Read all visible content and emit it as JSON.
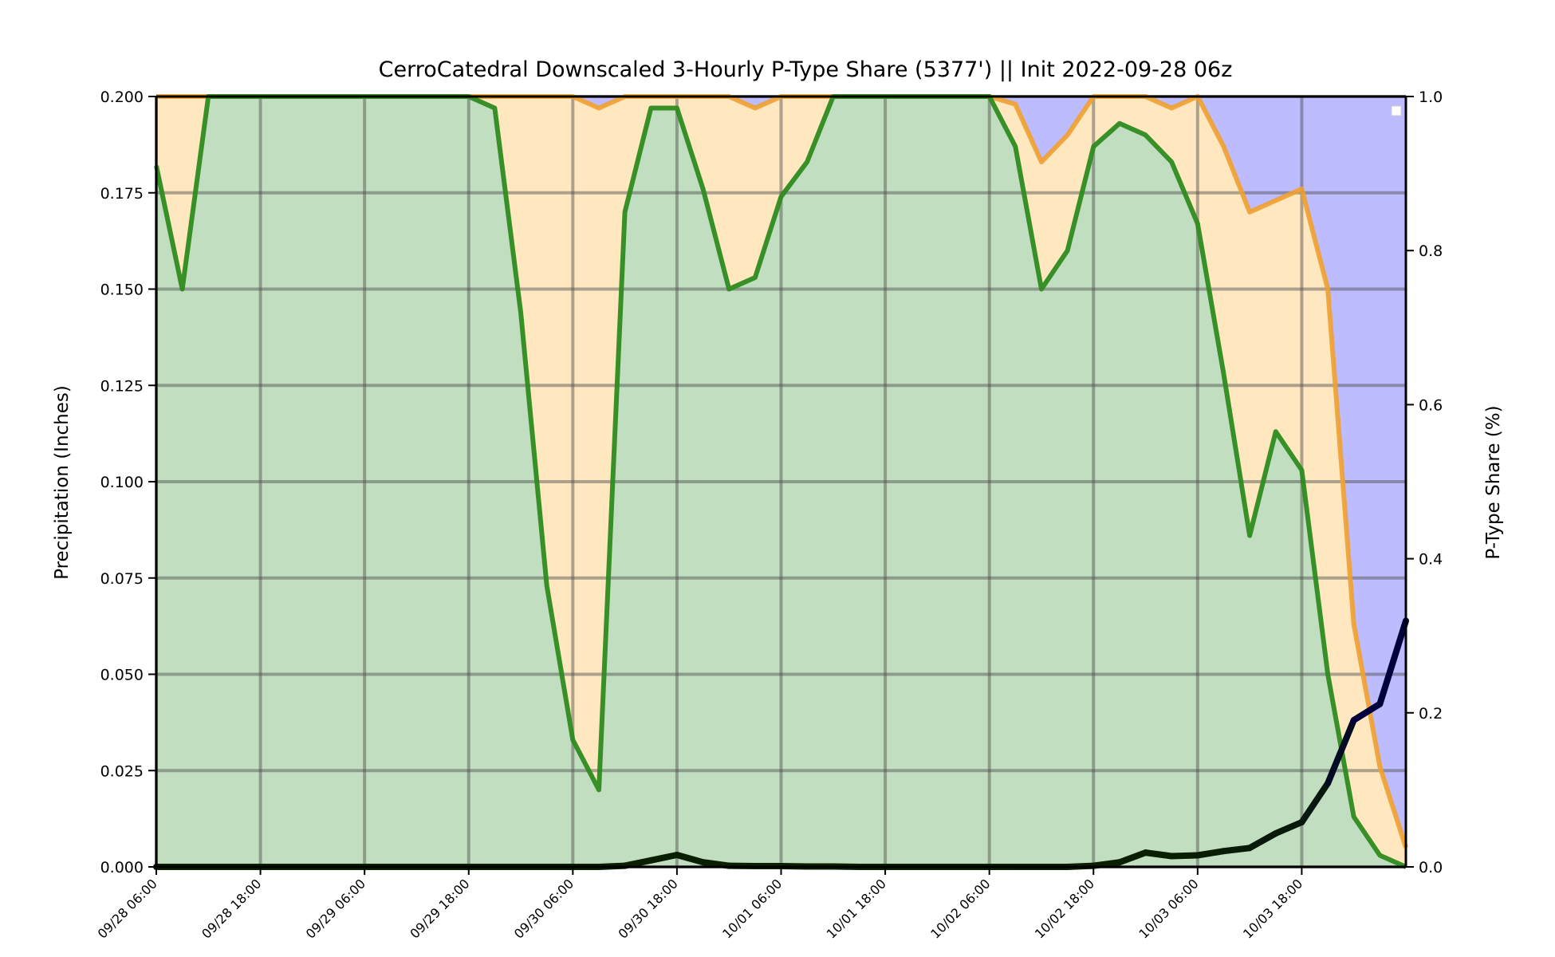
{
  "chart_data": {
    "type": "area",
    "title": "CerroCatedral Downscaled 3-Hourly P-Type Share (5377') || Init 2022-09-28 06z",
    "ylabel": "Precipitation (Inches)",
    "y2label": "P-Type Share (%)",
    "ylim": [
      0,
      0.2
    ],
    "y2lim": [
      0,
      1.0
    ],
    "yticks": [
      "0.000",
      "0.025",
      "0.050",
      "0.075",
      "0.100",
      "0.125",
      "0.150",
      "0.175",
      "0.200"
    ],
    "y2ticks": [
      "0.0",
      "0.2",
      "0.4",
      "0.6",
      "0.8",
      "1.0"
    ],
    "xticks": [
      "09/28 06:00",
      "09/28 18:00",
      "09/29 06:00",
      "09/29 18:00",
      "09/30 06:00",
      "09/30 18:00",
      "10/01 06:00",
      "10/01 18:00",
      "10/02 06:00",
      "10/02 18:00",
      "10/03 06:00",
      "10/03 18:00"
    ],
    "time_step_hours": 3,
    "grid": true,
    "legend": "top-right",
    "colors": {
      "rain_fill": "#c1dfc0",
      "mix_fill": "#ffe7c0",
      "snow_fill": "#bcbcff",
      "rain_line": "#2e8b1f",
      "mix_line": "#f0a030",
      "precip_low": "#0a1f00",
      "precip_high": "#00003c",
      "grid": "#4c4c4c"
    },
    "series": [
      {
        "key": "rain_share",
        "values": [
          0.91,
          0.75,
          1.0,
          1.0,
          1.0,
          1.0,
          1.0,
          1.0,
          1.0,
          1.0,
          1.0,
          1.0,
          1.0,
          0.985,
          0.72,
          0.365,
          0.165,
          0.1,
          0.85,
          0.985,
          0.985,
          0.88,
          0.75,
          0.765,
          0.87,
          0.915,
          1.0,
          1.0,
          1.0,
          1.0,
          1.0,
          1.0,
          1.0,
          0.935,
          0.75,
          0.8,
          0.935,
          0.965,
          0.95,
          0.915,
          0.835,
          0.64,
          0.43,
          0.565,
          0.515,
          0.25,
          0.065,
          0.015,
          0.0
        ]
      },
      {
        "key": "rain_mix_share",
        "values": [
          1.0,
          1.0,
          1.0,
          1.0,
          1.0,
          1.0,
          1.0,
          1.0,
          1.0,
          1.0,
          1.0,
          1.0,
          1.0,
          1.0,
          1.0,
          1.0,
          1.0,
          0.985,
          1.0,
          1.0,
          1.0,
          1.0,
          1.0,
          0.985,
          1.0,
          1.0,
          1.0,
          1.0,
          1.0,
          1.0,
          1.0,
          1.0,
          1.0,
          0.99,
          0.915,
          0.95,
          1.0,
          1.0,
          1.0,
          0.985,
          1.0,
          0.935,
          0.85,
          0.865,
          0.88,
          0.75,
          0.315,
          0.13,
          0.025
        ]
      },
      {
        "key": "precip_in",
        "values": [
          0.0,
          0.0,
          0.0,
          0.0,
          0.0,
          0.0,
          0.0,
          0.0,
          0.0,
          0.0,
          0.0,
          0.0,
          0.0,
          0.0,
          0.0,
          0.0,
          0.0,
          0.0,
          0.0003,
          0.0017,
          0.0031,
          0.0012,
          0.0003,
          0.0002,
          0.0002,
          0.0001,
          0.0001,
          0.0,
          0.0,
          0.0,
          0.0,
          0.0,
          0.0,
          0.0,
          0.0,
          0.0,
          0.0003,
          0.0012,
          0.0037,
          0.0028,
          0.003,
          0.0041,
          0.0049,
          0.0087,
          0.0116,
          0.0217,
          0.0381,
          0.0423,
          0.0639
        ]
      }
    ]
  }
}
